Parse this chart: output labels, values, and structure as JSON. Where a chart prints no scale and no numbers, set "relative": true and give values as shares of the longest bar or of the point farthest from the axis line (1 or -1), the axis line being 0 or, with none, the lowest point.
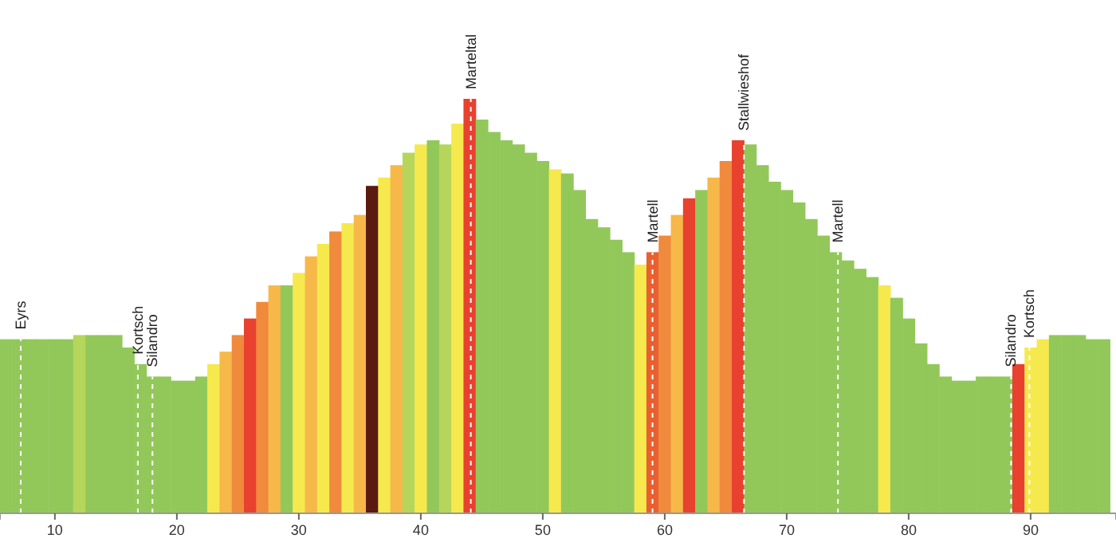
{
  "chart_data": {
    "type": "bar",
    "relative": true,
    "x": [
      6,
      7,
      8,
      9,
      10,
      11,
      12,
      13,
      14,
      15,
      16,
      17,
      18,
      19,
      20,
      21,
      22,
      23,
      24,
      25,
      26,
      27,
      28,
      29,
      30,
      31,
      32,
      33,
      34,
      35,
      36,
      37,
      38,
      39,
      40,
      41,
      42,
      43,
      44,
      45,
      46,
      47,
      48,
      49,
      50,
      51,
      52,
      53,
      54,
      55,
      56,
      57,
      58,
      59,
      60,
      61,
      62,
      63,
      64,
      65,
      66,
      67,
      68,
      69,
      70,
      71,
      72,
      73,
      74,
      75,
      76,
      77,
      78,
      79,
      80,
      81,
      82,
      83,
      84,
      85,
      86,
      87,
      88,
      89,
      90,
      91,
      92,
      93,
      94,
      95,
      96
    ],
    "values": [
      0.42,
      0.42,
      0.42,
      0.42,
      0.42,
      0.42,
      0.43,
      0.43,
      0.43,
      0.43,
      0.4,
      0.36,
      0.33,
      0.33,
      0.32,
      0.32,
      0.33,
      0.36,
      0.39,
      0.43,
      0.47,
      0.51,
      0.55,
      0.55,
      0.58,
      0.62,
      0.65,
      0.68,
      0.7,
      0.72,
      0.79,
      0.81,
      0.84,
      0.87,
      0.89,
      0.9,
      0.89,
      0.94,
      1.0,
      0.95,
      0.92,
      0.9,
      0.89,
      0.87,
      0.85,
      0.83,
      0.82,
      0.78,
      0.71,
      0.69,
      0.66,
      0.63,
      0.6,
      0.63,
      0.67,
      0.72,
      0.76,
      0.78,
      0.81,
      0.85,
      0.9,
      0.89,
      0.84,
      0.8,
      0.78,
      0.75,
      0.71,
      0.67,
      0.63,
      0.61,
      0.59,
      0.57,
      0.55,
      0.52,
      0.47,
      0.41,
      0.36,
      0.33,
      0.32,
      0.32,
      0.33,
      0.33,
      0.33,
      0.36,
      0.4,
      0.42,
      0.43,
      0.43,
      0.43,
      0.42,
      0.42
    ],
    "colors": [
      "#92c85a",
      "#92c85a",
      "#92c85a",
      "#92c85a",
      "#92c85a",
      "#92c85a",
      "#b5d65b",
      "#92c85a",
      "#92c85a",
      "#92c85a",
      "#92c85a",
      "#92c85a",
      "#92c85a",
      "#92c85a",
      "#92c85a",
      "#92c85a",
      "#92c85a",
      "#f5e94e",
      "#f7b84a",
      "#f08a3c",
      "#e8412f",
      "#f08a3c",
      "#f7b84a",
      "#92c85a",
      "#f5e94e",
      "#f7b84a",
      "#f5e94e",
      "#f08a3c",
      "#f5e94e",
      "#f7b84a",
      "#5a1a10",
      "#f5e94e",
      "#f7b84a",
      "#b5d65b",
      "#f5e94e",
      "#92c85a",
      "#b5d65b",
      "#f5e94e",
      "#e8412f",
      "#92c85a",
      "#92c85a",
      "#92c85a",
      "#92c85a",
      "#92c85a",
      "#92c85a",
      "#f5e94e",
      "#92c85a",
      "#92c85a",
      "#92c85a",
      "#92c85a",
      "#92c85a",
      "#92c85a",
      "#f5e94e",
      "#e8602f",
      "#f08a3c",
      "#f7b84a",
      "#e8412f",
      "#92c85a",
      "#f7b84a",
      "#f08a3c",
      "#e8412f",
      "#92c85a",
      "#92c85a",
      "#92c85a",
      "#92c85a",
      "#92c85a",
      "#92c85a",
      "#92c85a",
      "#92c85a",
      "#92c85a",
      "#92c85a",
      "#92c85a",
      "#f5e94e",
      "#92c85a",
      "#92c85a",
      "#92c85a",
      "#92c85a",
      "#92c85a",
      "#92c85a",
      "#92c85a",
      "#92c85a",
      "#92c85a",
      "#92c85a",
      "#e8412f",
      "#f5e94e",
      "#f5e94e",
      "#92c85a",
      "#92c85a",
      "#92c85a",
      "#92c85a",
      "#92c85a"
    ],
    "xlim": [
      5.5,
      97
    ],
    "xticks": [
      10,
      20,
      30,
      40,
      50,
      60,
      70,
      80,
      90
    ],
    "grid": false,
    "ref_lines": [
      {
        "axis": "x",
        "value": 7.2,
        "label": "Eyrs",
        "color": "#ffffff",
        "line_style": "dashed"
      },
      {
        "axis": "x",
        "value": 16.8,
        "label": "Kortsch",
        "color": "#ffffff",
        "line_style": "dashed"
      },
      {
        "axis": "x",
        "value": 18,
        "label": "Silandro",
        "color": "#ffffff",
        "line_style": "dashed"
      },
      {
        "axis": "x",
        "value": 44.1,
        "label": "Marteltal",
        "color": "#ffffff",
        "line_style": "dashed"
      },
      {
        "axis": "x",
        "value": 59,
        "label": "Martell",
        "color": "#ffffff",
        "line_style": "dashed"
      },
      {
        "axis": "x",
        "value": 66.5,
        "label": "Stallwieshof",
        "color": "#ffffff",
        "line_style": "dashed"
      },
      {
        "axis": "x",
        "value": 74.2,
        "label": "Martell",
        "color": "#ffffff",
        "line_style": "dashed"
      },
      {
        "axis": "x",
        "value": 88.4,
        "label": "Silandro",
        "color": "#ffffff",
        "line_style": "dashed"
      },
      {
        "axis": "x",
        "value": 89.9,
        "label": "Kortsch",
        "color": "#ffffff",
        "line_style": "dashed"
      }
    ]
  }
}
